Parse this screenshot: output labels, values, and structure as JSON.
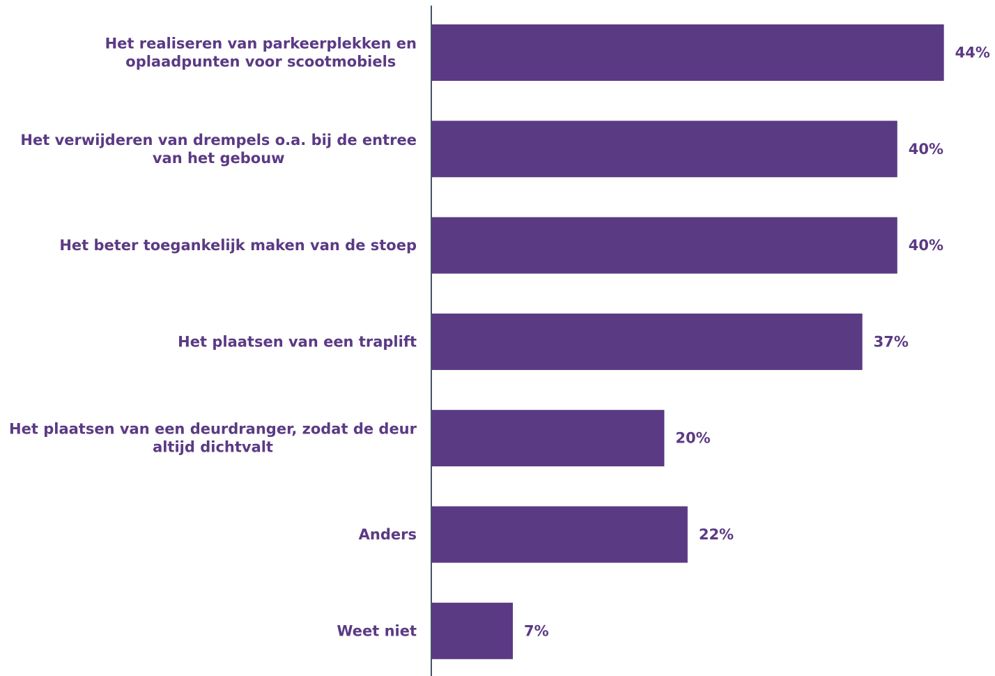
{
  "chart_data": {
    "type": "bar",
    "orientation": "horizontal",
    "title": "",
    "xlabel": "",
    "ylabel": "",
    "categories": [
      [
        "Het realiseren van parkeerplekken en",
        "oplaadpunten voor scootmobiels"
      ],
      [
        "Het verwijderen van drempels o.a. bij de entree",
        "van het gebouw"
      ],
      [
        "Het beter toegankelijk maken van de stoep"
      ],
      [
        "Het plaatsen van een traplift"
      ],
      [
        "Het plaatsen van een deurdranger, zodat de deur",
        "altijd dichtvalt"
      ],
      [
        "Anders"
      ],
      [
        "Weet niet"
      ]
    ],
    "values": [
      44,
      40,
      40,
      37,
      20,
      22,
      7
    ],
    "value_labels": [
      "44%",
      "40%",
      "40%",
      "37%",
      "20%",
      "22%",
      "7%"
    ],
    "unit": "%",
    "grid": false,
    "legend": "none",
    "colors": {
      "bar": "#5b3a84",
      "text": "#5b3a84",
      "axis": "#44546a"
    }
  }
}
